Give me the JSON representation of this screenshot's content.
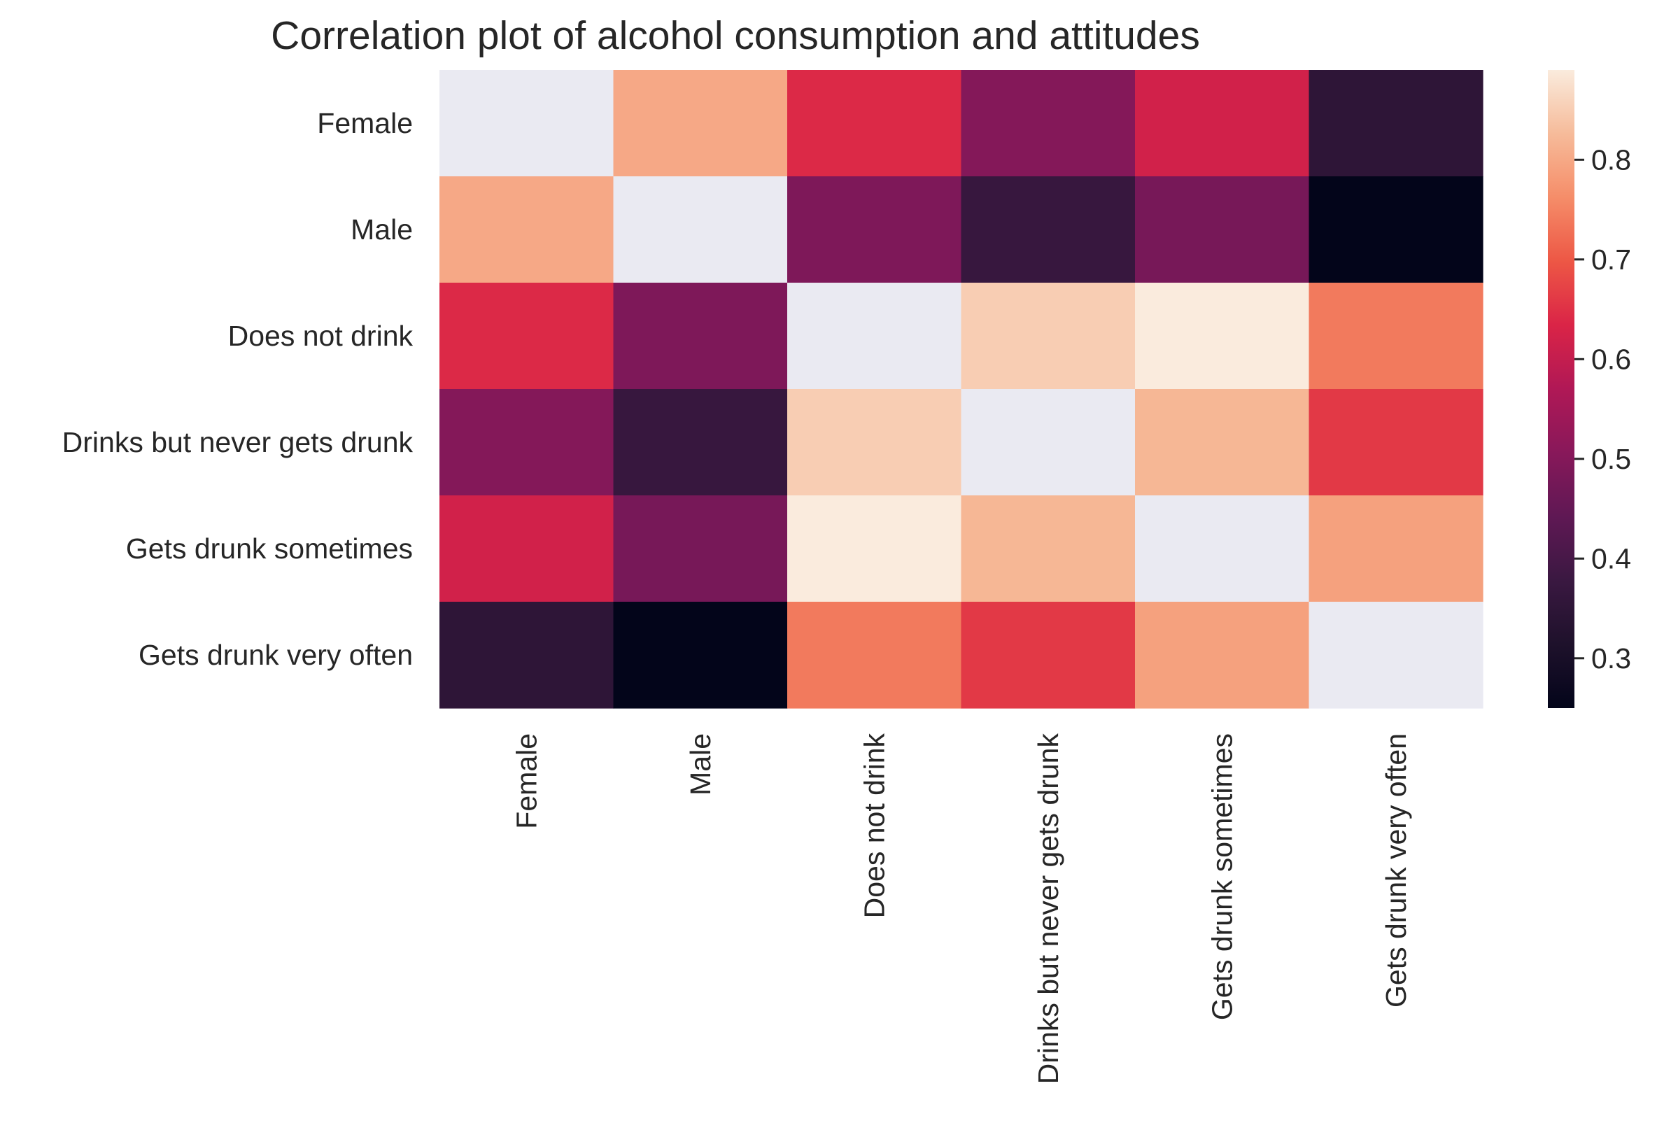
{
  "chart_data": {
    "type": "heatmap",
    "title": "Correlation plot of alcohol consumption and attitudes",
    "xlabel": "",
    "ylabel": "",
    "rows": [
      "Female",
      "Male",
      "Does not drink",
      "Drinks but never gets drunk",
      "Gets drunk sometimes",
      "Gets drunk very often"
    ],
    "columns": [
      "Female",
      "Male",
      "Does not drink",
      "Drinks but never gets drunk",
      "Gets drunk sometimes",
      "Gets drunk very often"
    ],
    "values": [
      [
        null,
        0.8,
        0.64,
        0.5,
        0.62,
        0.35
      ],
      [
        0.8,
        null,
        0.49,
        0.37,
        0.48,
        0.25
      ],
      [
        0.64,
        0.49,
        null,
        0.85,
        0.89,
        0.74
      ],
      [
        0.5,
        0.37,
        0.85,
        null,
        0.82,
        0.66
      ],
      [
        0.62,
        0.48,
        0.89,
        0.82,
        null,
        0.79
      ],
      [
        0.35,
        0.25,
        0.74,
        0.66,
        0.79,
        null
      ]
    ],
    "missing_color": "#eaeaf2",
    "colorbar": {
      "range": [
        0.25,
        0.89
      ],
      "ticks": [
        "0.3",
        "0.4",
        "0.5",
        "0.6",
        "0.7",
        "0.8"
      ],
      "colormap": "rocket"
    }
  }
}
